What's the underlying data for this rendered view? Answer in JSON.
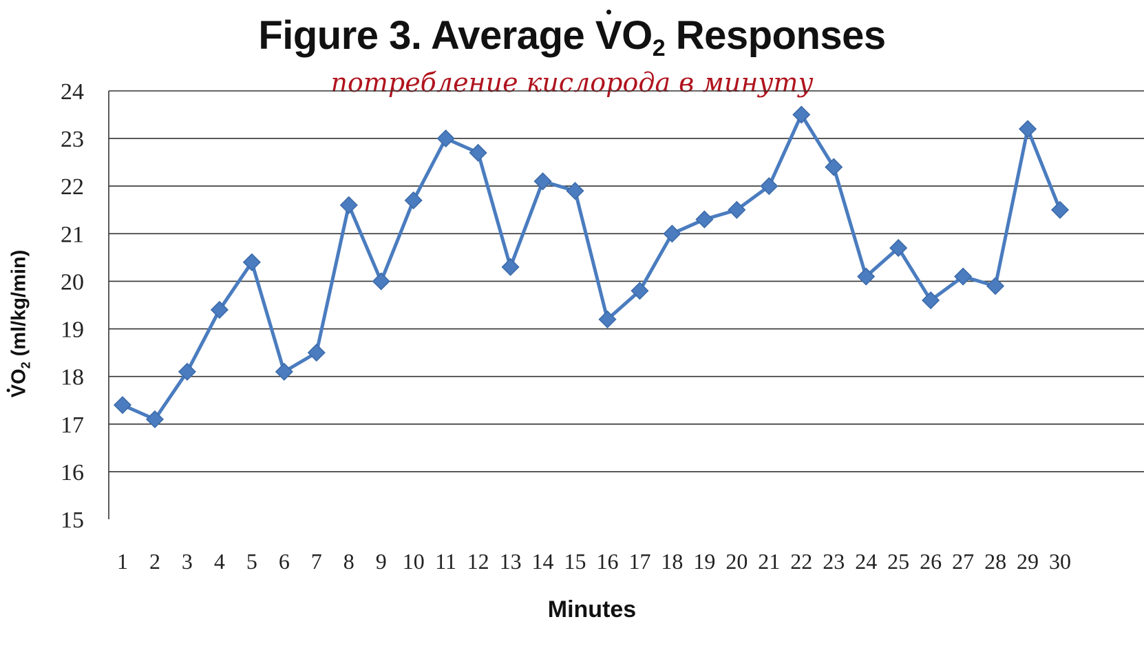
{
  "chart_data": {
    "type": "line",
    "title_main": "Figure 3. Average ",
    "title_v": "V",
    "title_o": "O",
    "title_sub": "2",
    "title_tail": " Responses",
    "subtitle": "потребление кислорода в минуту",
    "xlabel": "Minutes",
    "ylabel_v": "V",
    "ylabel_o": "O",
    "ylabel_sub": "2",
    "ylabel_tail": " (ml/kg/min)",
    "ylim": [
      15,
      24
    ],
    "yticks": [
      "15",
      "16",
      "17",
      "18",
      "19",
      "20",
      "21",
      "22",
      "23",
      "24"
    ],
    "grid": true,
    "categories": [
      "1",
      "2",
      "3",
      "4",
      "5",
      "6",
      "7",
      "8",
      "9",
      "10",
      "11",
      "12",
      "13",
      "14",
      "15",
      "16",
      "17",
      "18",
      "19",
      "20",
      "21",
      "22",
      "23",
      "24",
      "25",
      "26",
      "27",
      "28",
      "29",
      "30"
    ],
    "series": [
      {
        "values": [
          17.4,
          17.1,
          18.1,
          19.4,
          20.4,
          18.1,
          18.5,
          21.6,
          20.0,
          21.7,
          23.0,
          22.7,
          20.3,
          22.1,
          21.9,
          19.2,
          19.8,
          21.0,
          21.3,
          21.5,
          22.0,
          23.5,
          22.4,
          20.1,
          20.7,
          19.6,
          20.1,
          19.9,
          23.2,
          21.5
        ],
        "color": "#4a7cbf",
        "marker": "diamond"
      }
    ]
  }
}
